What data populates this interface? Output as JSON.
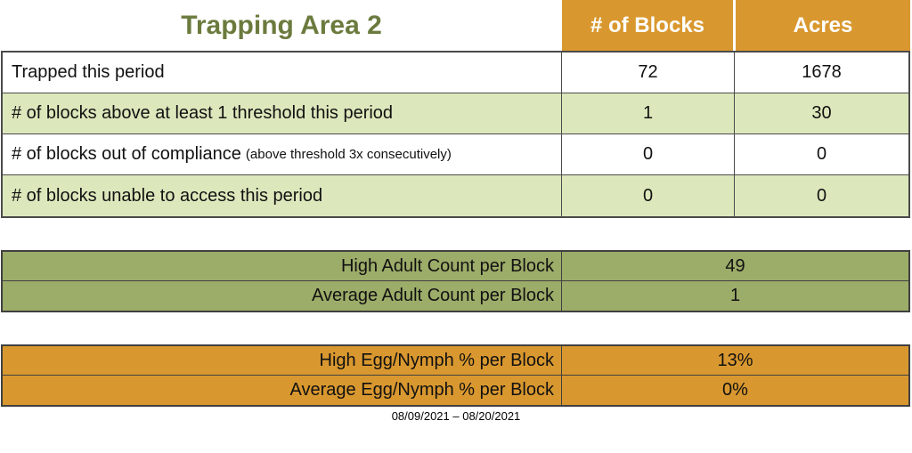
{
  "title": "Trapping Area 2",
  "summary_table": {
    "column_headers": {
      "blocks": "# of Blocks",
      "acres": "Acres"
    },
    "rows": [
      {
        "label": "Trapped this period",
        "note": "",
        "blocks": "72",
        "acres": "1678"
      },
      {
        "label": "# of blocks above at least 1 threshold this period",
        "note": "",
        "blocks": "1",
        "acres": "30"
      },
      {
        "label": "# of blocks out of compliance",
        "note": "(above threshold 3x consecutively)",
        "blocks": "0",
        "acres": "0"
      },
      {
        "label": "# of blocks unable to access this period",
        "note": "",
        "blocks": "0",
        "acres": "0"
      }
    ]
  },
  "adult_count_table": {
    "rows": [
      {
        "label": "High Adult Count per Block",
        "value": "49"
      },
      {
        "label": "Average Adult Count per Block",
        "value": "1"
      }
    ]
  },
  "egg_nymph_table": {
    "rows": [
      {
        "label": "High Egg/Nymph % per Block",
        "value": "13%"
      },
      {
        "label": "Average Egg/Nymph % per Block",
        "value": "0%"
      }
    ]
  },
  "date_range": "08/09/2021 – 08/20/2021",
  "colors": {
    "header_orange": "#d9982f",
    "row_light_green": "#dce8bc",
    "adult_olive": "#9cac69",
    "title_green": "#6b7b3e",
    "grid_border": "#404040"
  }
}
